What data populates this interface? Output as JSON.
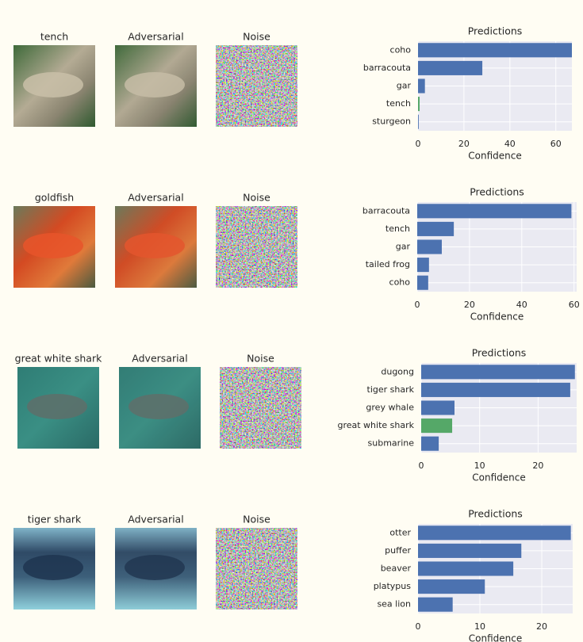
{
  "panels": [
    {
      "titles": [
        "tench",
        "Adversarial",
        "Noise"
      ]
    },
    {
      "titles": [
        "goldfish",
        "Adversarial",
        "Noise"
      ]
    },
    {
      "titles": [
        "great white shark",
        "Adversarial",
        "Noise"
      ]
    },
    {
      "titles": [
        "tiger shark",
        "Adversarial",
        "Noise"
      ]
    }
  ],
  "chart_data": [
    {
      "type": "bar",
      "orientation": "horizontal",
      "title": "Predictions",
      "xlabel": "Confidence",
      "categories": [
        "coho",
        "barracouta",
        "gar",
        "tench",
        "sturgeon"
      ],
      "values": [
        67,
        28,
        3,
        0.7,
        0.3
      ],
      "colors": [
        "#4c72b0",
        "#4c72b0",
        "#4c72b0",
        "#55a868",
        "#4c72b0"
      ],
      "xlim": [
        0,
        67
      ],
      "xticks": [
        0,
        20,
        40,
        60
      ],
      "grid": true
    },
    {
      "type": "bar",
      "orientation": "horizontal",
      "title": "Predictions",
      "xlabel": "Confidence",
      "categories": [
        "barracouta",
        "tench",
        "gar",
        "tailed frog",
        "coho"
      ],
      "values": [
        59,
        14,
        9.4,
        4.5,
        4.2
      ],
      "colors": [
        "#4c72b0",
        "#4c72b0",
        "#4c72b0",
        "#4c72b0",
        "#4c72b0"
      ],
      "xlim": [
        0,
        61
      ],
      "xticks": [
        0,
        20,
        40,
        60
      ],
      "grid": true
    },
    {
      "type": "bar",
      "orientation": "horizontal",
      "title": "Predictions",
      "xlabel": "Confidence",
      "categories": [
        "dugong",
        "tiger shark",
        "grey whale",
        "great white shark",
        "submarine"
      ],
      "values": [
        26.3,
        25.5,
        5.7,
        5.3,
        3
      ],
      "colors": [
        "#4c72b0",
        "#4c72b0",
        "#4c72b0",
        "#55a868",
        "#4c72b0"
      ],
      "xlim": [
        0,
        26.6
      ],
      "xticks": [
        0,
        10,
        20
      ],
      "grid": true
    },
    {
      "type": "bar",
      "orientation": "horizontal",
      "title": "Predictions",
      "xlabel": "Confidence",
      "categories": [
        "otter",
        "puffer",
        "beaver",
        "platypus",
        "sea lion"
      ],
      "values": [
        24.7,
        16.7,
        15.4,
        10.8,
        5.6
      ],
      "colors": [
        "#4c72b0",
        "#4c72b0",
        "#4c72b0",
        "#4c72b0",
        "#4c72b0"
      ],
      "xlim": [
        0,
        25
      ],
      "xticks": [
        0,
        10,
        20
      ],
      "grid": true
    }
  ]
}
